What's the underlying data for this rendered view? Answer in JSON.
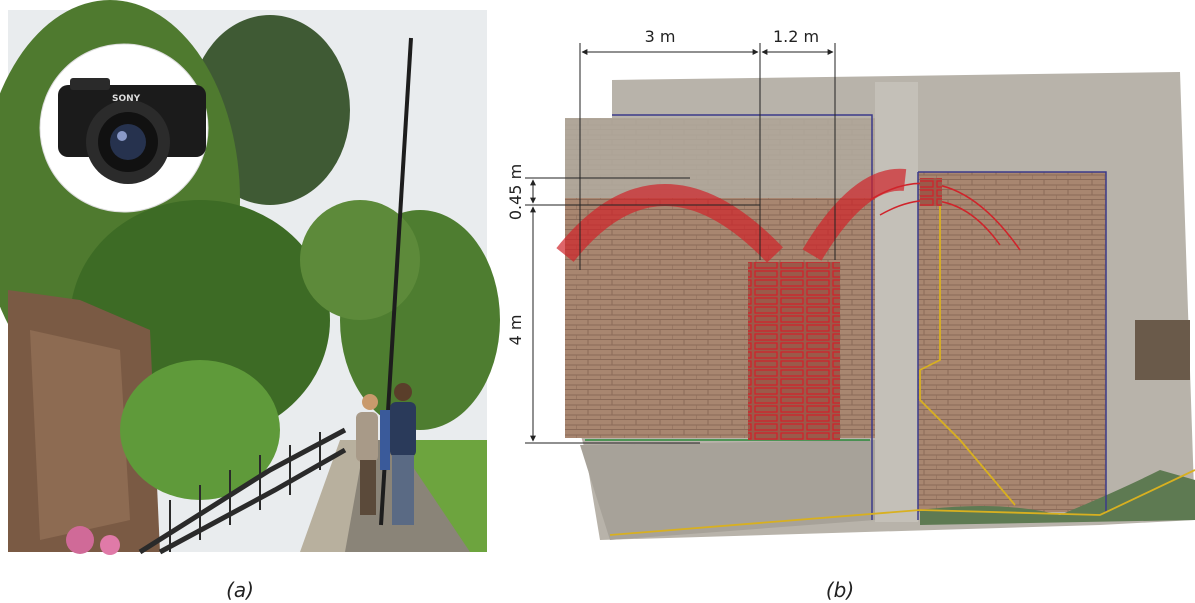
{
  "panels": [
    {
      "caption": "(a)",
      "camera_brand": "SONY"
    },
    {
      "caption": "(b)",
      "dimensions": {
        "top": [
          "3 m",
          "1.2 m"
        ],
        "left": [
          "0.45 m",
          "4 m"
        ]
      }
    }
  ]
}
